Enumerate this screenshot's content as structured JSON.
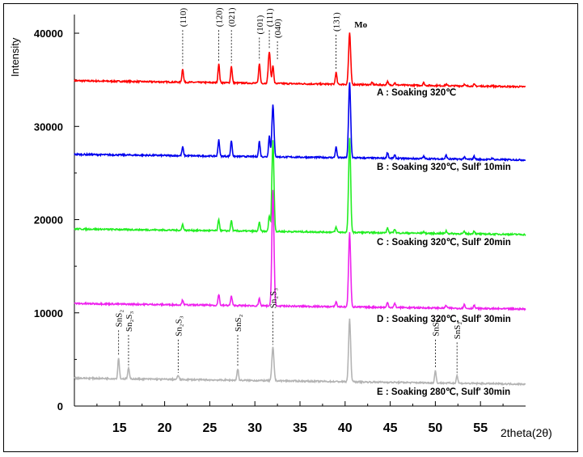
{
  "chart_data": {
    "type": "line",
    "title": "",
    "xlabel": "2theta(2θ)",
    "ylabel": "Intensity",
    "xlim": [
      10,
      60
    ],
    "ylim": [
      0,
      42000
    ],
    "xticks": [
      15,
      20,
      25,
      30,
      35,
      40,
      45,
      50,
      55
    ],
    "yticks": [
      0,
      10000,
      20000,
      30000,
      40000
    ],
    "ytick_labels": [
      "0",
      "10000",
      "20000",
      "30000",
      "40000"
    ],
    "xtick_labels": [
      "15",
      "20",
      "25",
      "30",
      "35",
      "40",
      "45",
      "50",
      "55"
    ],
    "grid": false,
    "legend": "none",
    "series": [
      {
        "name": "A : Soaking 320℃",
        "color": "#ff0000",
        "baseline": [
          [
            10,
            34900
          ],
          [
            60,
            34250
          ]
        ],
        "peaks": [
          {
            "x": 22.0,
            "y": 36200
          },
          {
            "x": 26.0,
            "y": 36700
          },
          {
            "x": 27.4,
            "y": 36500
          },
          {
            "x": 30.5,
            "y": 36800
          },
          {
            "x": 31.6,
            "y": 38000
          },
          {
            "x": 32.0,
            "y": 36600
          },
          {
            "x": 39.0,
            "y": 35800
          },
          {
            "x": 40.5,
            "y": 40000
          },
          {
            "x": 43.0,
            "y": 34700
          },
          {
            "x": 44.7,
            "y": 34800
          },
          {
            "x": 45.5,
            "y": 34700
          },
          {
            "x": 48.7,
            "y": 34700
          },
          {
            "x": 51.2,
            "y": 34500
          },
          {
            "x": 53.2,
            "y": 34500
          },
          {
            "x": 54.3,
            "y": 34500
          },
          {
            "x": 56.3,
            "y": 34400
          }
        ]
      },
      {
        "name": "B : Soaking 320℃, Sulf' 10min",
        "color": "#0000ee",
        "baseline": [
          [
            10,
            27000
          ],
          [
            60,
            26400
          ]
        ],
        "peaks": [
          {
            "x": 22.0,
            "y": 27800
          },
          {
            "x": 26.0,
            "y": 28600
          },
          {
            "x": 27.4,
            "y": 28500
          },
          {
            "x": 30.5,
            "y": 28400
          },
          {
            "x": 31.6,
            "y": 29000
          },
          {
            "x": 32.0,
            "y": 32300
          },
          {
            "x": 39.0,
            "y": 27800
          },
          {
            "x": 40.5,
            "y": 34700
          },
          {
            "x": 44.7,
            "y": 27200
          },
          {
            "x": 45.5,
            "y": 26900
          },
          {
            "x": 48.7,
            "y": 26800
          },
          {
            "x": 51.2,
            "y": 26900
          },
          {
            "x": 53.2,
            "y": 26700
          },
          {
            "x": 54.3,
            "y": 26800
          },
          {
            "x": 56.3,
            "y": 26600
          }
        ]
      },
      {
        "name": "C : Soaking 320℃, Sulf' 20min",
        "color": "#22ee22",
        "baseline": [
          [
            10,
            19000
          ],
          [
            60,
            18400
          ]
        ],
        "peaks": [
          {
            "x": 22.0,
            "y": 19500
          },
          {
            "x": 26.0,
            "y": 20000
          },
          {
            "x": 27.4,
            "y": 19900
          },
          {
            "x": 30.5,
            "y": 19700
          },
          {
            "x": 31.6,
            "y": 20400
          },
          {
            "x": 32.0,
            "y": 28500
          },
          {
            "x": 39.0,
            "y": 19200
          },
          {
            "x": 40.5,
            "y": 28700
          },
          {
            "x": 44.7,
            "y": 19100
          },
          {
            "x": 45.5,
            "y": 19000
          },
          {
            "x": 48.7,
            "y": 18700
          },
          {
            "x": 51.2,
            "y": 18800
          },
          {
            "x": 53.2,
            "y": 18700
          },
          {
            "x": 54.3,
            "y": 18800
          }
        ]
      },
      {
        "name": "D : Soaking 320℃, Sulf' 30min",
        "color": "#ee22ee",
        "baseline": [
          [
            10,
            11000
          ],
          [
            60,
            10400
          ]
        ],
        "peaks": [
          {
            "x": 22.0,
            "y": 11400
          },
          {
            "x": 26.0,
            "y": 12000
          },
          {
            "x": 27.4,
            "y": 11800
          },
          {
            "x": 30.5,
            "y": 11500
          },
          {
            "x": 32.0,
            "y": 23200
          },
          {
            "x": 39.0,
            "y": 11200
          },
          {
            "x": 40.5,
            "y": 18600
          },
          {
            "x": 44.7,
            "y": 11100
          },
          {
            "x": 45.5,
            "y": 11000
          },
          {
            "x": 51.2,
            "y": 10800
          },
          {
            "x": 53.2,
            "y": 10900
          },
          {
            "x": 54.3,
            "y": 10800
          }
        ]
      },
      {
        "name": "E : Soaking 280℃, Sulf' 30min",
        "color": "#b4b4b4",
        "baseline": [
          [
            10,
            3000
          ],
          [
            60,
            2350
          ]
        ],
        "peaks": [
          {
            "x": 14.9,
            "y": 5200
          },
          {
            "x": 16.0,
            "y": 4100
          },
          {
            "x": 21.5,
            "y": 3300
          },
          {
            "x": 28.1,
            "y": 4000
          },
          {
            "x": 32.0,
            "y": 6300
          },
          {
            "x": 40.5,
            "y": 9300
          },
          {
            "x": 50.0,
            "y": 3800
          },
          {
            "x": 52.4,
            "y": 3300
          }
        ]
      }
    ],
    "annotations": [
      {
        "text": "(110)",
        "x": 22.0,
        "top": 40500,
        "bottom": 36300
      },
      {
        "text": "(120)",
        "x": 26.0,
        "top": 40500,
        "bottom": 36800
      },
      {
        "text": "(021)",
        "x": 27.4,
        "top": 40500,
        "bottom": 36600
      },
      {
        "text": "(101)",
        "x": 30.5,
        "top": 39700,
        "bottom": 36900
      },
      {
        "text": "(111)",
        "x": 31.6,
        "top": 40500,
        "bottom": 38100
      },
      {
        "text": "(040)",
        "x": 32.5,
        "top": 39300,
        "bottom": 37000
      },
      {
        "text": "(131)",
        "x": 39.0,
        "top": 40000,
        "bottom": 35900
      },
      {
        "text": "Mo",
        "x": 41.2,
        "top": 40800,
        "bottom": 40800
      },
      {
        "text": "SnS₂",
        "x": 14.9,
        "top": 8300,
        "bottom": 5300
      },
      {
        "text": "Sn₂S₃",
        "x": 16.0,
        "top": 7800,
        "bottom": 4200
      },
      {
        "text": "Sn₂S₃",
        "x": 21.5,
        "top": 7300,
        "bottom": 3400
      },
      {
        "text": "SnS₂",
        "x": 28.1,
        "top": 7800,
        "bottom": 4100
      },
      {
        "text": "Sn₂S₃",
        "x": 32.0,
        "top": 10300,
        "bottom": 6400
      },
      {
        "text": "SnS₂",
        "x": 50.0,
        "top": 7300,
        "bottom": 3900
      },
      {
        "text": "SnS₂",
        "x": 52.4,
        "top": 7000,
        "bottom": 3400
      }
    ]
  }
}
